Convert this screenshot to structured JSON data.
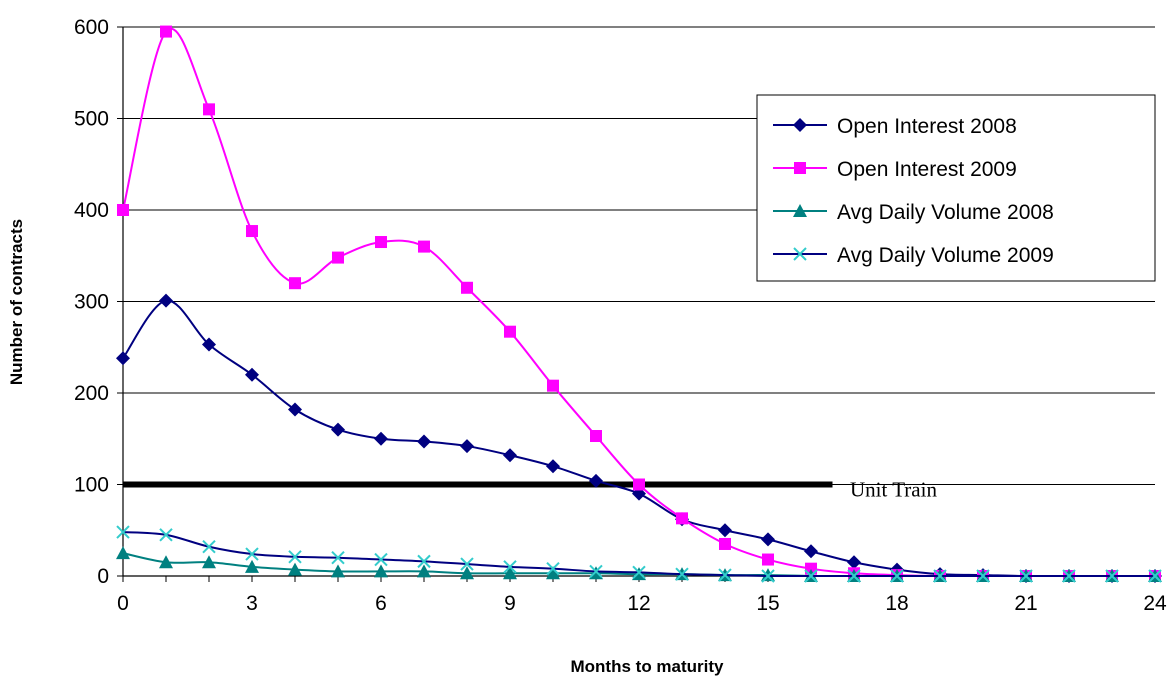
{
  "chart_data": {
    "type": "line",
    "title": "",
    "xlabel": "Months to maturity",
    "ylabel": "Number of contracts",
    "xlim": [
      0,
      24
    ],
    "ylim": [
      0,
      600
    ],
    "x_ticks": [
      0,
      3,
      6,
      9,
      12,
      15,
      18,
      21,
      24
    ],
    "y_ticks": [
      0,
      100,
      200,
      300,
      400,
      500,
      600
    ],
    "grid": "horizontal",
    "legend_position": "top-right",
    "x": [
      0,
      1,
      2,
      3,
      4,
      5,
      6,
      7,
      8,
      9,
      10,
      11,
      12,
      13,
      14,
      15,
      16,
      17,
      18,
      19,
      20,
      21,
      22,
      23,
      24
    ],
    "series": [
      {
        "name": "Open Interest 2008",
        "color": "#000080",
        "marker": "diamond",
        "values": [
          238,
          301,
          253,
          220,
          182,
          160,
          150,
          147,
          142,
          132,
          120,
          104,
          90,
          62,
          50,
          40,
          27,
          15,
          7,
          2,
          1,
          0,
          0,
          0,
          0
        ]
      },
      {
        "name": "Open Interest 2009",
        "color": "#FF00FF",
        "marker": "square",
        "values": [
          400,
          595,
          510,
          377,
          320,
          348,
          365,
          360,
          315,
          267,
          208,
          153,
          100,
          63,
          35,
          18,
          8,
          3,
          1,
          0,
          0,
          0,
          0,
          0,
          0
        ]
      },
      {
        "name": "Avg Daily Volume 2008",
        "color": "#008080",
        "marker": "triangle",
        "values": [
          25,
          15,
          15,
          10,
          7,
          5,
          5,
          5,
          3,
          3,
          3,
          3,
          2,
          2,
          1,
          1,
          0,
          0,
          0,
          0,
          0,
          0,
          0,
          0,
          0
        ]
      },
      {
        "name": "Avg Daily Volume 2009",
        "color": "#000080",
        "marker_color": "#33CCCC",
        "marker": "x",
        "values": [
          48,
          45,
          32,
          24,
          21,
          20,
          18,
          16,
          13,
          10,
          8,
          5,
          4,
          2,
          1,
          0,
          0,
          0,
          0,
          0,
          0,
          0,
          0,
          0,
          0
        ]
      }
    ],
    "annotations": [
      {
        "type": "reference-line",
        "y": 100,
        "x_start": 0,
        "x_end": 16.5,
        "color": "#000000"
      },
      {
        "type": "label",
        "text": "Unit Train",
        "y": 100
      }
    ]
  }
}
